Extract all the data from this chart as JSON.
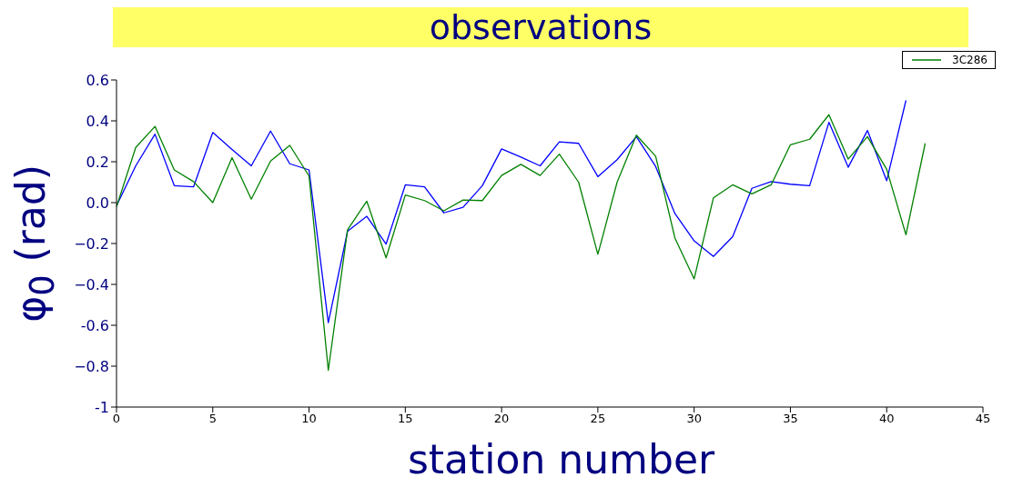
{
  "chart_data": {
    "type": "line",
    "title": "observations",
    "xlabel": "station number",
    "ylabel": "φ$_{0}$ (rad)",
    "x": [
      0,
      1,
      2,
      3,
      4,
      5,
      6,
      7,
      8,
      9,
      10,
      11,
      12,
      13,
      14,
      15,
      16,
      17,
      18,
      19,
      20,
      21,
      22,
      23,
      24,
      25,
      26,
      27,
      28,
      29,
      30,
      31,
      32,
      33,
      34,
      35,
      36,
      37,
      38,
      39,
      40,
      41,
      42
    ],
    "series": [
      {
        "color": "#0000ff",
        "values": [
          -0.015,
          0.18,
          0.335,
          0.083,
          0.077,
          0.343,
          0.26,
          0.18,
          0.35,
          0.19,
          0.16,
          -0.587,
          -0.14,
          -0.067,
          -0.203,
          0.087,
          0.077,
          -0.05,
          -0.023,
          0.083,
          0.263,
          0.223,
          0.18,
          0.297,
          0.29,
          0.127,
          0.21,
          0.323,
          0.177,
          -0.053,
          -0.187,
          -0.263,
          -0.167,
          0.07,
          0.103,
          0.09,
          0.083,
          0.393,
          0.173,
          0.353,
          0.107,
          0.5,
          null
        ]
      },
      {
        "name": "3C286",
        "color": "#008000",
        "values": [
          -0.02,
          0.27,
          0.373,
          0.16,
          0.103,
          0.0,
          0.22,
          0.017,
          0.203,
          0.28,
          0.13,
          -0.82,
          -0.133,
          0.007,
          -0.27,
          0.037,
          0.01,
          -0.04,
          0.013,
          0.01,
          0.133,
          0.187,
          0.133,
          0.237,
          0.1,
          -0.253,
          0.1,
          0.33,
          0.227,
          -0.173,
          -0.373,
          0.023,
          0.087,
          0.043,
          0.087,
          0.283,
          0.31,
          0.43,
          0.213,
          0.323,
          0.163,
          -0.157,
          0.29
        ]
      }
    ],
    "xlim": [
      0,
      45
    ],
    "xticks": [
      0,
      5,
      10,
      15,
      20,
      25,
      30,
      35,
      40,
      45
    ],
    "ylim": [
      -1,
      0.6
    ],
    "yticks": [
      {
        "value": -1,
        "label": "-1"
      },
      {
        "value": -0.8,
        "label": "−0.8"
      },
      {
        "value": -0.6,
        "label": "-0.6"
      },
      {
        "value": -0.4,
        "label": "−0.4"
      },
      {
        "value": -0.2,
        "label": "−0.2"
      },
      {
        "value": 0,
        "label": "0.0"
      },
      {
        "value": 0.2,
        "label": "0.2"
      },
      {
        "value": 0.4,
        "label": "0.4"
      },
      {
        "value": 0.6,
        "label": "0.6"
      }
    ],
    "grid": false,
    "legend": "top right",
    "marker": "none",
    "line_style": "solid"
  }
}
